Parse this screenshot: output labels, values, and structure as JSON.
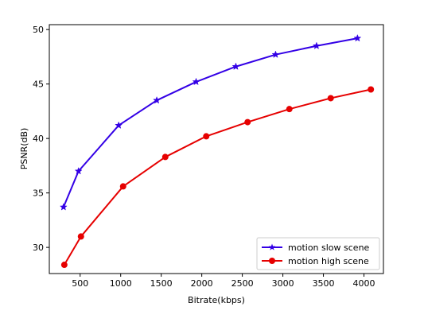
{
  "chart_data": {
    "type": "line",
    "title": "",
    "xlabel": "Bitrate(kbps)",
    "ylabel": "PSNR(dB)",
    "xlim": [
      120,
      4240
    ],
    "ylim": [
      27.6,
      50.45
    ],
    "xticks": [
      500,
      1000,
      1500,
      2000,
      2500,
      3000,
      3500,
      4000
    ],
    "yticks": [
      30,
      35,
      40,
      45,
      50
    ],
    "grid": false,
    "legend_position": "bottom-right",
    "series": [
      {
        "name": "motion slow scene",
        "color": "#3300e6",
        "marker": "star",
        "x": [
          295,
          480,
          975,
          1445,
          1930,
          2420,
          2910,
          3415,
          3920
        ],
        "y": [
          33.7,
          37.0,
          41.2,
          43.5,
          45.2,
          46.6,
          47.7,
          48.5,
          49.2
        ]
      },
      {
        "name": "motion high scene",
        "color": "#e60000",
        "marker": "circle",
        "x": [
          305,
          510,
          1030,
          1550,
          2055,
          2565,
          3080,
          3590,
          4085
        ],
        "y": [
          28.4,
          31.0,
          35.6,
          38.3,
          40.2,
          41.5,
          42.7,
          43.7,
          44.5
        ]
      }
    ]
  }
}
